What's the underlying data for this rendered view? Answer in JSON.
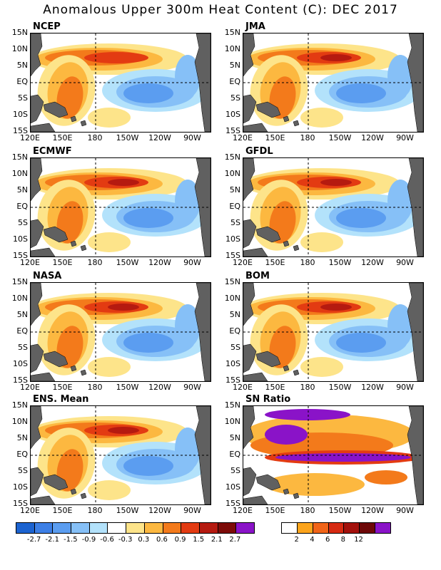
{
  "title": "Anomalous Upper 300m Heat Content (C): DEC 2017",
  "panels": [
    {
      "name": "NCEP"
    },
    {
      "name": "JMA"
    },
    {
      "name": "ECMWF"
    },
    {
      "name": "GFDL"
    },
    {
      "name": "NASA"
    },
    {
      "name": "BOM"
    },
    {
      "name": "ENS. Mean"
    },
    {
      "name": "SN Ratio"
    }
  ],
  "lat_labels": [
    "15N",
    "10N",
    "5N",
    "EQ",
    "5S",
    "10S",
    "15S"
  ],
  "lon_labels": [
    "120E",
    "150E",
    "180",
    "150W",
    "120W",
    "90W"
  ],
  "colorbar_main": {
    "colors": [
      "#1c63d0",
      "#3c7fe6",
      "#5b9df0",
      "#86c0f7",
      "#b3e2fb",
      "#ffffff",
      "#fde48a",
      "#fcb840",
      "#f37a1b",
      "#e33b12",
      "#b51a10",
      "#7d0b08",
      "#8a13c8"
    ],
    "labels": [
      "-2.7",
      "-2.1",
      "-1.5",
      "-0.9",
      "-0.6",
      "-0.3",
      "0.3",
      "0.6",
      "0.9",
      "1.5",
      "2.1",
      "2.7"
    ]
  },
  "colorbar_sn": {
    "colors": [
      "#ffffff",
      "#fca41c",
      "#f16418",
      "#d62a12",
      "#a3110c",
      "#6e0808",
      "#8a13c8"
    ],
    "labels": [
      "2",
      "4",
      "6",
      "8",
      "12"
    ]
  },
  "colors": {
    "land": "#606060",
    "warm1": "#fde48a",
    "warm2": "#fcb840",
    "warm3": "#f37a1b",
    "warm4": "#e33b12",
    "warm5": "#b51a10",
    "cool1": "#b3e2fb",
    "cool2": "#86c0f7",
    "cool3": "#5b9df0",
    "purple": "#8a13c8"
  }
}
